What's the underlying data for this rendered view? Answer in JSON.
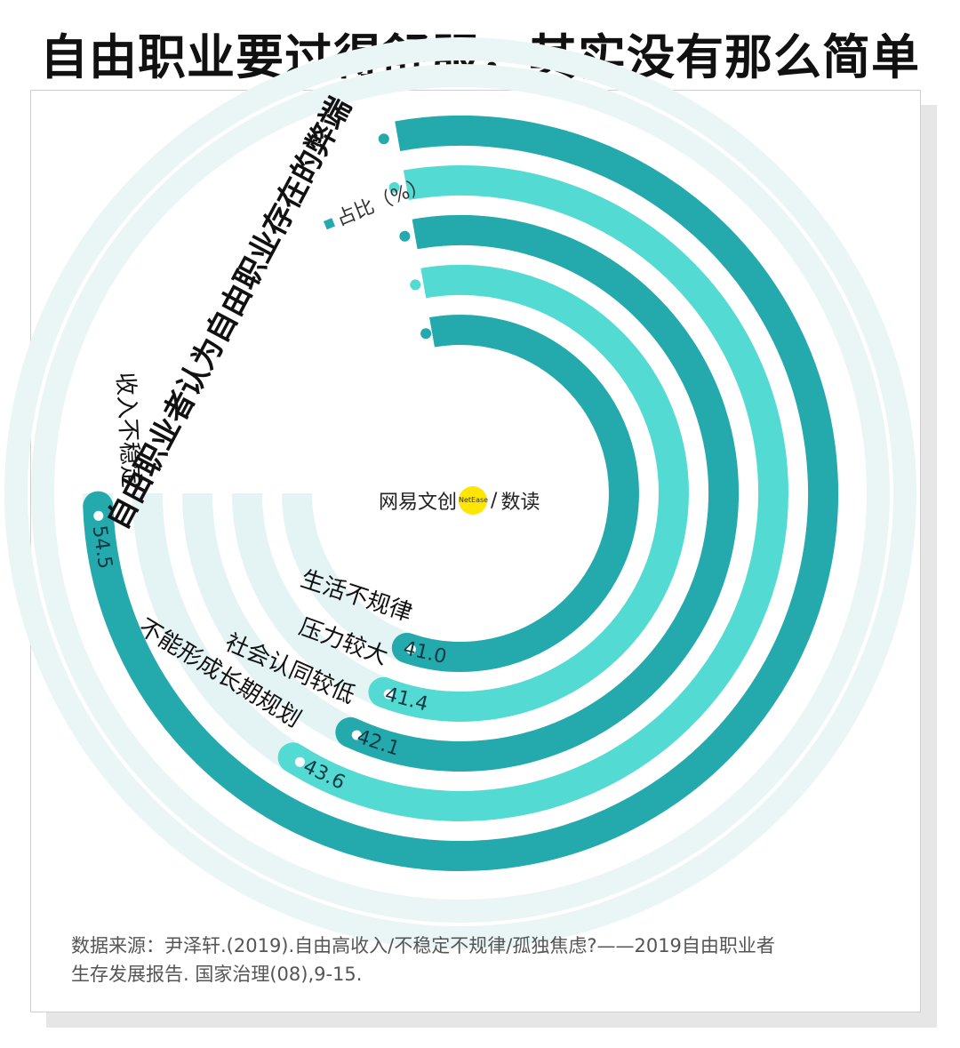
{
  "headline": "自由职业要过得舒服，其实没有那么简单",
  "chart_data": {
    "type": "radial_bar",
    "title": "自由职业者认为自由职业存在的弊端",
    "legend": "占比（%）",
    "unit": "%",
    "categories": [
      "收入不稳定",
      "不能形成长期规划",
      "社会认同较低",
      "压力较大",
      "生活不规律"
    ],
    "values": [
      54.5,
      43.6,
      42.1,
      41.4,
      41.0
    ],
    "colors": [
      "#24a9ad",
      "#53dbd3",
      "#24a9ad",
      "#53dbd3",
      "#24a9ad"
    ]
  },
  "logo": {
    "brand": "网易文创",
    "badge": "NetEase",
    "sub": "数读"
  },
  "source": {
    "line1": "数据来源：尹泽轩.(2019).自由高收入/不稳定不规律/孤独焦虑?——2019自由职业者",
    "line2": "生存发展报告. 国家治理(08),9-15."
  }
}
